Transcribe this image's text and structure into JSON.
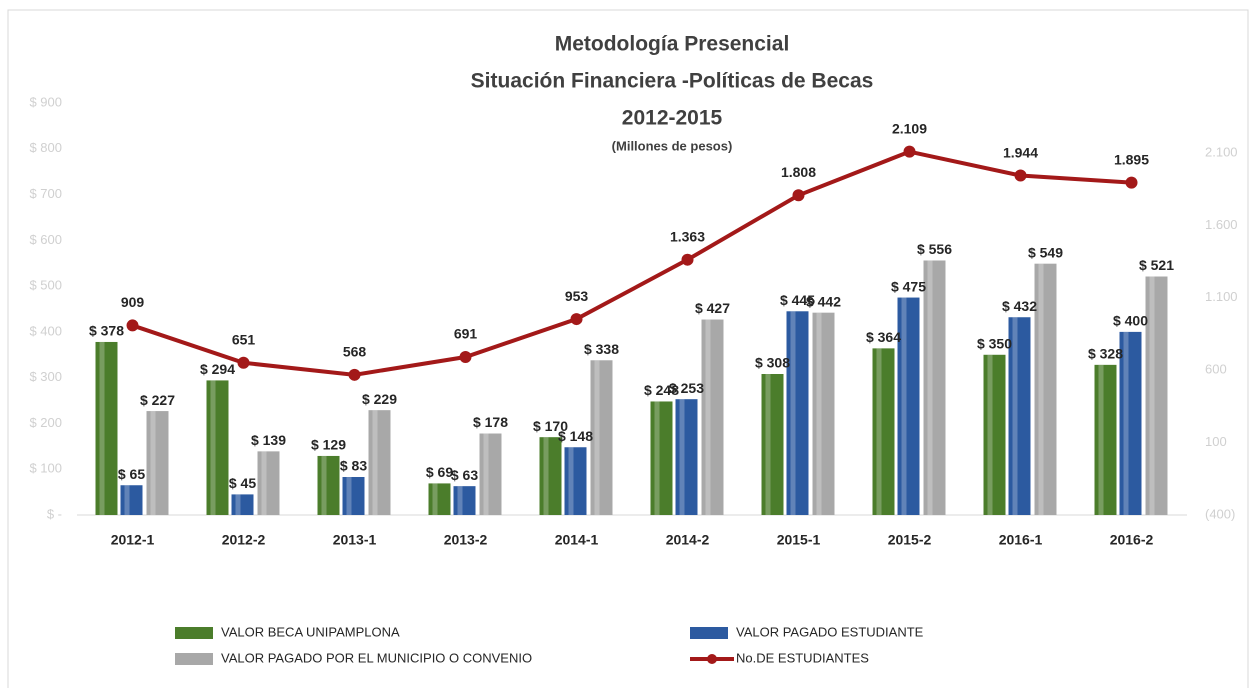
{
  "chart_data": {
    "type": "bar",
    "title": "Metodología Presencial",
    "subtitle": "Situación Financiera -Políticas de Becas",
    "subtitle2": "2012-2015",
    "subtitle3": "(Millones de pesos)",
    "categories": [
      "2012-1",
      "2012-2",
      "2013-1",
      "2013-2",
      "2014-1",
      "2014-2",
      "2015-1",
      "2015-2",
      "2016-1",
      "2016-2"
    ],
    "series": [
      {
        "name": "VALOR BECA UNIPAMPLONA",
        "type": "bar",
        "color": "#4b7d2b",
        "values": [
          378,
          294,
          129,
          69,
          170,
          248,
          308,
          364,
          350,
          328
        ],
        "value_labels": [
          "$ 378",
          "$ 294",
          "$ 129",
          "$ 69",
          "$ 170",
          "$ 248",
          "$ 308",
          "$ 364",
          "$ 350",
          "$ 328"
        ]
      },
      {
        "name": "VALOR PAGADO ESTUDIANTE",
        "type": "bar",
        "color": "#2c5aa0",
        "values": [
          65,
          45,
          83,
          63,
          148,
          253,
          445,
          475,
          432,
          400
        ],
        "value_labels": [
          "$ 65",
          "$ 45",
          "$ 83",
          "$ 63",
          "$ 148",
          "$ 253",
          "$ 445",
          "$ 475",
          "$ 432",
          "$ 400"
        ]
      },
      {
        "name": "VALOR PAGADO POR EL MUNICIPIO O CONVENIO",
        "type": "bar",
        "color": "#a8a8a8",
        "values": [
          227,
          139,
          229,
          178,
          338,
          427,
          442,
          556,
          549,
          521
        ],
        "value_labels": [
          "$ 227",
          "$ 139",
          "$ 229",
          "$ 178",
          "$ 338",
          "$ 427",
          "$ 442",
          "$ 556",
          "$ 549",
          "$ 521"
        ]
      },
      {
        "name": "No.DE ESTUDIANTES",
        "type": "line",
        "axis": "y2",
        "color": "#a31919",
        "values": [
          909,
          651,
          568,
          691,
          953,
          1363,
          1808,
          2109,
          1944,
          1895
        ],
        "value_labels": [
          "909",
          "651",
          "568",
          "691",
          "953",
          "1.363",
          "1.808",
          "2.109",
          "1.944",
          "1.895"
        ]
      }
    ],
    "ylim": [
      0,
      900
    ],
    "yticks": [
      {
        "value": 0,
        "label": "$ -"
      },
      {
        "value": 100,
        "label": "$ 100"
      },
      {
        "value": 200,
        "label": "$ 200"
      },
      {
        "value": 300,
        "label": "$ 300"
      },
      {
        "value": 400,
        "label": "$ 400"
      },
      {
        "value": 500,
        "label": "$ 500"
      },
      {
        "value": 600,
        "label": "$ 600"
      },
      {
        "value": 700,
        "label": "$ 700"
      },
      {
        "value": 800,
        "label": "$ 800"
      },
      {
        "value": 900,
        "label": "$ 900"
      }
    ],
    "y2lim": [
      -400,
      2445
    ],
    "y2ticks": [
      {
        "value": -400,
        "label": "(400)"
      },
      100,
      600,
      {
        "value": 1100,
        "label": "1.100"
      },
      {
        "value": 1600,
        "label": "1.600"
      },
      {
        "value": 2100,
        "label": "2.100"
      }
    ],
    "grid": false
  }
}
